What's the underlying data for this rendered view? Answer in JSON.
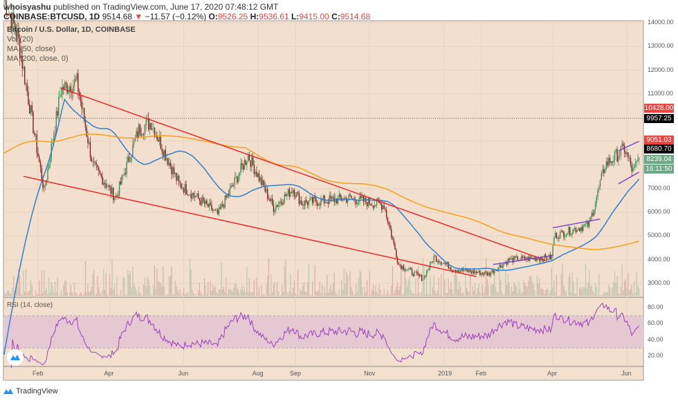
{
  "header": {
    "author": "whoisyashu",
    "published": "published on TradingView.com, June 17, 2020 07:48:12 GMT",
    "symbol": "COINBASE:BTCUSD, 1D",
    "last": "9514.68",
    "change": "−11.57 (−0.12%)",
    "o_label": "O:",
    "o": "9526.25",
    "h_label": "H:",
    "h": "9536.61",
    "l_label": "L:",
    "l": "9415.00",
    "c_label": "C:",
    "c": "9514.68"
  },
  "legend": {
    "title": "Bitcoin / U.S. Dollar, 1D, COINBASE",
    "vol": "Vol (20)",
    "ma50": "MA (50, close)",
    "ma200": "MA (200, close, 0)",
    "rsi": "RSI (14, close)"
  },
  "price_axis": [
    "14000.00",
    "13000.00",
    "12000.00",
    "11000.00",
    "7000.00",
    "6000.00",
    "5000.00",
    "4000.00",
    "3000.00"
  ],
  "price_tags": [
    {
      "value": "10428.00",
      "color": "#f0433f"
    },
    {
      "value": "9957.25",
      "color": "#000000"
    },
    {
      "value": "9051.03",
      "color": "#f0433f"
    },
    {
      "value": "8680.70",
      "color": "#000000"
    },
    {
      "value": "8239.04",
      "color": "#6aaa82"
    },
    {
      "value": "16:11:50",
      "color": "#6aaa82"
    }
  ],
  "rsi_axis": [
    "80.00",
    "60.00",
    "40.00",
    "20.00"
  ],
  "time_axis": [
    {
      "label": "Feb",
      "date": "2018-02-01"
    },
    {
      "label": "Apr",
      "date": "2018-04-01"
    },
    {
      "label": "Jun",
      "date": "2018-06-01"
    },
    {
      "label": "Aug",
      "date": "2018-08-01"
    },
    {
      "label": "Sep",
      "date": "2018-09-01"
    },
    {
      "label": "Nov",
      "date": "2018-11-01"
    },
    {
      "label": "2019",
      "date": "2019-01-01"
    },
    {
      "label": "Feb",
      "date": "2019-02-01"
    },
    {
      "label": "Apr",
      "date": "2019-04-01"
    },
    {
      "label": "Jun",
      "date": "2019-06-01"
    }
  ],
  "footer": {
    "brand": "TradingView"
  },
  "colors": {
    "bg": "#f2dfcd",
    "up": "#3e8a52",
    "down": "#7d1f1f",
    "ma50": "#2d7fd3",
    "ma200": "#f5a01a",
    "trend": "#f21d1d",
    "channel": "#7b3fd0",
    "rsi": "#9b3fbf",
    "rsi_band": "#e6c8d2"
  },
  "chart_data": {
    "type": "candlestick",
    "price_keypoints": [
      [
        "2018-01-04",
        15000
      ],
      [
        "2018-01-15",
        13500
      ],
      [
        "2018-02-06",
        6900
      ],
      [
        "2018-02-20",
        11200
      ],
      [
        "2018-03-05",
        11500
      ],
      [
        "2018-03-18",
        8000
      ],
      [
        "2018-04-06",
        6600
      ],
      [
        "2018-04-25",
        9500
      ],
      [
        "2018-05-05",
        9800
      ],
      [
        "2018-05-28",
        7200
      ],
      [
        "2018-06-10",
        6700
      ],
      [
        "2018-06-29",
        5900
      ],
      [
        "2018-07-24",
        8400
      ],
      [
        "2018-08-14",
        6200
      ],
      [
        "2018-08-30",
        7000
      ],
      [
        "2018-09-06",
        6400
      ],
      [
        "2018-10-15",
        6600
      ],
      [
        "2018-11-13",
        6300
      ],
      [
        "2018-11-25",
        3800
      ],
      [
        "2018-12-15",
        3200
      ],
      [
        "2018-12-24",
        4100
      ],
      [
        "2019-01-10",
        3600
      ],
      [
        "2019-02-07",
        3400
      ],
      [
        "2019-02-24",
        4000
      ],
      [
        "2019-03-31",
        4100
      ],
      [
        "2019-04-02",
        5000
      ],
      [
        "2019-05-01",
        5500
      ],
      [
        "2019-05-14",
        8000
      ],
      [
        "2019-05-30",
        8700
      ],
      [
        "2019-06-06",
        7700
      ],
      [
        "2019-06-11",
        8239
      ]
    ],
    "trendlines": [
      {
        "color": "red",
        "points": [
          [
            "2018-02-19",
            11260
          ],
          [
            "2019-03-27",
            3960
          ]
        ]
      },
      {
        "color": "red",
        "points": [
          [
            "2018-01-20",
            7520
          ],
          [
            "2019-01-28",
            3290
          ]
        ]
      },
      {
        "color": "purple",
        "points": [
          [
            "2019-02-11",
            3800
          ],
          [
            "2019-04-01",
            4180
          ]
        ]
      },
      {
        "color": "purple",
        "points": [
          [
            "2019-04-01",
            5350
          ],
          [
            "2019-05-10",
            5720
          ]
        ]
      },
      {
        "color": "purple",
        "points": [
          [
            "2019-05-25",
            8600
          ],
          [
            "2019-06-11",
            9000
          ]
        ]
      },
      {
        "color": "purple",
        "points": [
          [
            "2019-05-25",
            7200
          ],
          [
            "2019-06-11",
            7700
          ]
        ]
      }
    ],
    "dotted_line": 9957.25,
    "ylim": [
      2700,
      14200
    ],
    "rsi_band": [
      30,
      70
    ]
  }
}
